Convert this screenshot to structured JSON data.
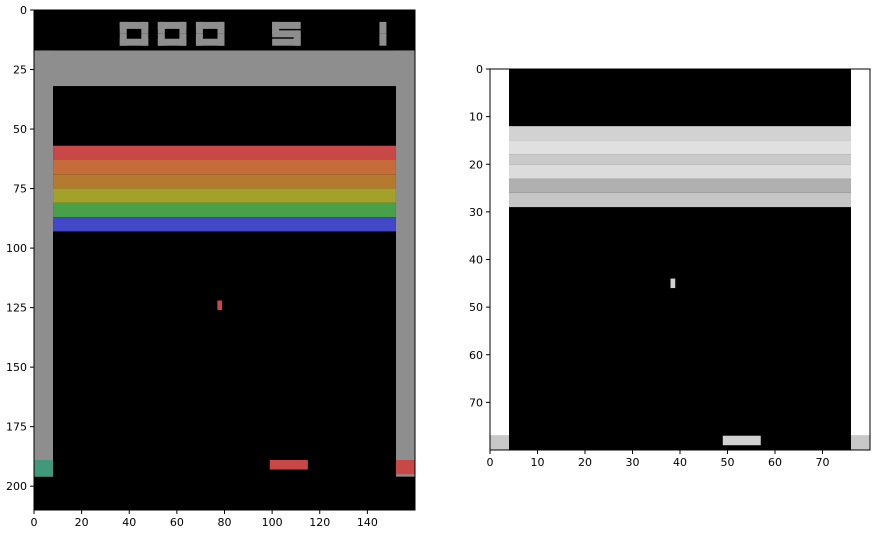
{
  "left_panel": {
    "title": "",
    "score_digits": [
      "000",
      "5",
      "1"
    ],
    "xlim": [
      0,
      160
    ],
    "ylim": [
      210,
      0
    ],
    "x_ticks": [
      "0",
      "20",
      "40",
      "60",
      "80",
      "100",
      "120",
      "140"
    ],
    "y_ticks": [
      "0",
      "25",
      "50",
      "75",
      "100",
      "125",
      "150",
      "175",
      "200"
    ],
    "colors": {
      "background": "#000000",
      "wall": "#8e8e8e",
      "score": "#8e8e8e",
      "ball": "#c84848",
      "paddle": "#c84848",
      "left_corner": "#42987a",
      "right_corner": "#c84848"
    },
    "brick_rows": [
      {
        "color": "#c84848",
        "y0": 57,
        "y1": 63
      },
      {
        "color": "#c66c3a",
        "y0": 63,
        "y1": 69
      },
      {
        "color": "#b47a30",
        "y0": 69,
        "y1": 75
      },
      {
        "color": "#a2a22a",
        "y0": 75,
        "y1": 81
      },
      {
        "color": "#48a048",
        "y0": 81,
        "y1": 87
      },
      {
        "color": "#4248c8",
        "y0": 87,
        "y1": 93
      }
    ],
    "ball": {
      "x0": 77,
      "x1": 79,
      "y0": 122,
      "y1": 126
    },
    "paddle": {
      "x0": 99,
      "x1": 115,
      "y0": 189,
      "y1": 193
    }
  },
  "right_panel": {
    "title": "",
    "xlim": [
      0,
      80
    ],
    "ylim": [
      80,
      0
    ],
    "x_ticks": [
      "0",
      "10",
      "20",
      "30",
      "40",
      "50",
      "60",
      "70"
    ],
    "y_ticks": [
      "0",
      "10",
      "20",
      "30",
      "40",
      "50",
      "60",
      "70"
    ],
    "colors": {
      "background": "#000000",
      "wall": "#ffffff",
      "ball": "#d2d2d2",
      "paddle": "#d2d2d2",
      "corner": "#c8c8c8"
    },
    "brick_rows": [
      {
        "gray": "#d2d2d2",
        "y0": 12,
        "y1": 15
      },
      {
        "gray": "#e0e0e0",
        "y0": 15,
        "y1": 18
      },
      {
        "gray": "#cacaca",
        "y0": 18,
        "y1": 20
      },
      {
        "gray": "#dcdcdc",
        "y0": 20,
        "y1": 23
      },
      {
        "gray": "#b0b0b0",
        "y0": 23,
        "y1": 26
      },
      {
        "gray": "#c6c6c6",
        "y0": 26,
        "y1": 29
      }
    ],
    "ball": {
      "x0": 38,
      "x1": 39,
      "y0": 44,
      "y1": 46
    },
    "paddle": {
      "x0": 49,
      "x1": 57,
      "y0": 77,
      "y1": 79
    }
  }
}
